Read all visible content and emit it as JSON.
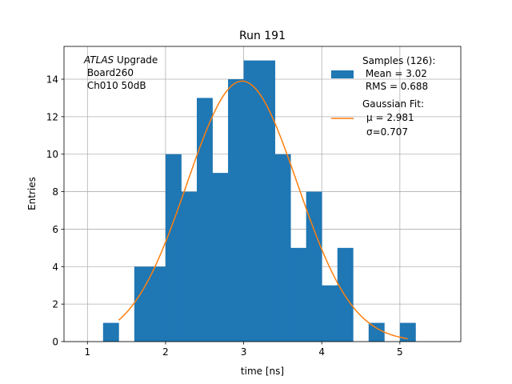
{
  "chart_data": {
    "type": "bar",
    "title": "Run 191",
    "xlabel": "time [ns]",
    "ylabel": "Entries",
    "xlim": [
      0.7,
      5.78
    ],
    "ylim": [
      0,
      15.75
    ],
    "grid": true,
    "xticks": [
      "1",
      "2",
      "3",
      "4",
      "5"
    ],
    "yticks": [
      "0",
      "2",
      "4",
      "6",
      "8",
      "10",
      "12",
      "14"
    ],
    "bin_width": 0.2,
    "bins": [
      {
        "x": 1.3,
        "value": 1
      },
      {
        "x": 1.5,
        "value": 0
      },
      {
        "x": 1.7,
        "value": 4
      },
      {
        "x": 1.9,
        "value": 4
      },
      {
        "x": 2.1,
        "value": 10
      },
      {
        "x": 2.3,
        "value": 8
      },
      {
        "x": 2.5,
        "value": 13
      },
      {
        "x": 2.7,
        "value": 9
      },
      {
        "x": 2.9,
        "value": 14
      },
      {
        "x": 3.1,
        "value": 15
      },
      {
        "x": 3.3,
        "value": 15
      },
      {
        "x": 3.5,
        "value": 10
      },
      {
        "x": 3.7,
        "value": 5
      },
      {
        "x": 3.9,
        "value": 8
      },
      {
        "x": 4.1,
        "value": 3
      },
      {
        "x": 4.3,
        "value": 5
      },
      {
        "x": 4.5,
        "value": 0
      },
      {
        "x": 4.7,
        "value": 1
      },
      {
        "x": 4.9,
        "value": 0
      },
      {
        "x": 5.1,
        "value": 1
      }
    ],
    "fit": {
      "amplitude": 13.9,
      "mu": 2.981,
      "sigma": 0.707,
      "x_range": [
        1.4,
        5.1
      ]
    },
    "annotation": {
      "atlas": "ATLAS",
      "upgrade": " Upgrade",
      "line2": " Board260",
      "line3": " Ch010 50dB"
    },
    "legend": {
      "placement": "top-right",
      "hist_lines": [
        "Samples (126):",
        " Mean = 3.02",
        " RMS = 0.688"
      ],
      "fit_lines": [
        "Gaussian Fit:",
        "μ = 2.981",
        "σ=0.707"
      ]
    },
    "colors": {
      "hist": "#1f77b4",
      "fit": "#ff7f0e",
      "grid": "#b0b0b0"
    }
  }
}
